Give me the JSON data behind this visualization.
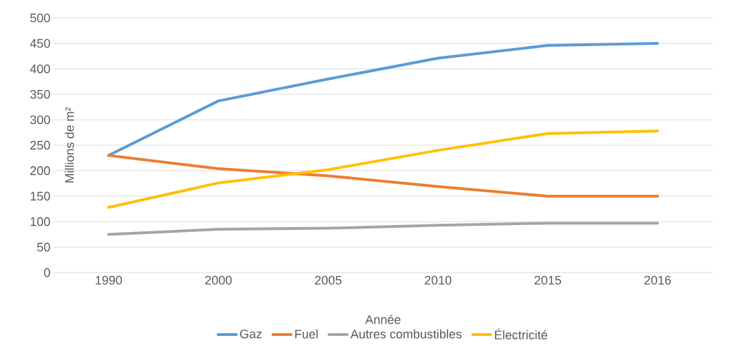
{
  "chart_data": {
    "type": "line",
    "xlabel": "Année",
    "ylabel": "Millions de m²",
    "categories": [
      "1990",
      "2000",
      "2005",
      "2010",
      "2015",
      "2016"
    ],
    "series": [
      {
        "name": "Gaz",
        "color": "#5b9bd5",
        "values": [
          230,
          337,
          380,
          421,
          446,
          450
        ]
      },
      {
        "name": "Fuel",
        "color": "#ed7d31",
        "values": [
          230,
          204,
          190,
          169,
          150,
          150
        ]
      },
      {
        "name": "Autres combustibles",
        "color": "#a5a5a5",
        "values": [
          75,
          85,
          87,
          93,
          97,
          97
        ]
      },
      {
        "name": "Électricité",
        "color": "#ffc000",
        "values": [
          128,
          176,
          202,
          240,
          273,
          278
        ]
      }
    ],
    "ylim": [
      0,
      500
    ],
    "yticks": [
      0,
      50,
      100,
      150,
      200,
      250,
      300,
      350,
      400,
      450,
      500
    ],
    "grid": "y",
    "legend": "bottom"
  }
}
